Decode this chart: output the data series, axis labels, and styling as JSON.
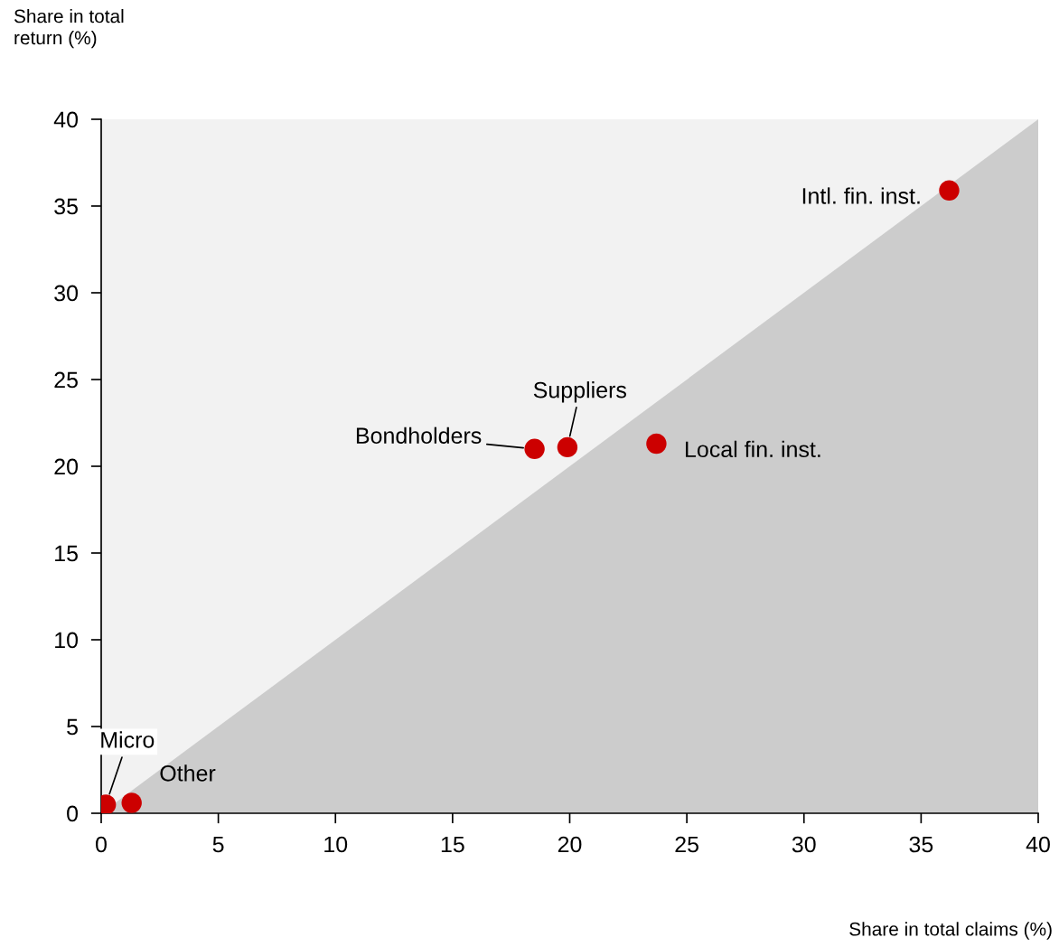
{
  "chart_data": {
    "type": "scatter",
    "xlabel": "Share in total claims (%)",
    "ylabel": "Share in total return (%)",
    "xlim": [
      0,
      40
    ],
    "ylim": [
      0,
      40
    ],
    "xticks": [
      0,
      5,
      10,
      15,
      20,
      25,
      30,
      35,
      40
    ],
    "yticks": [
      0,
      5,
      10,
      15,
      20,
      25,
      30,
      35,
      40
    ],
    "grid": false,
    "legend": false,
    "series": [
      {
        "type": "area",
        "color": "#cccccc",
        "x": [
          0,
          40
        ],
        "values": [
          0,
          40
        ]
      },
      {
        "marker": "circle",
        "color": "#cc0000",
        "x": [
          0.2,
          1.3,
          18.5,
          19.9,
          23.7,
          36.2
        ],
        "values": [
          0.5,
          0.6,
          21.0,
          21.1,
          21.3,
          35.9
        ]
      }
    ],
    "annotations": [
      {
        "text": "Micro",
        "x": 0.2,
        "y": 0.5
      },
      {
        "text": "Other",
        "x": 1.3,
        "y": 0.6
      },
      {
        "text": "Bondholders",
        "x": 18.5,
        "y": 21.0
      },
      {
        "text": "Suppliers",
        "x": 19.9,
        "y": 21.1
      },
      {
        "text": "Local fin. inst.",
        "x": 23.7,
        "y": 21.3
      },
      {
        "text": "Intl. fin. inst.",
        "x": 36.2,
        "y": 35.9
      }
    ]
  }
}
